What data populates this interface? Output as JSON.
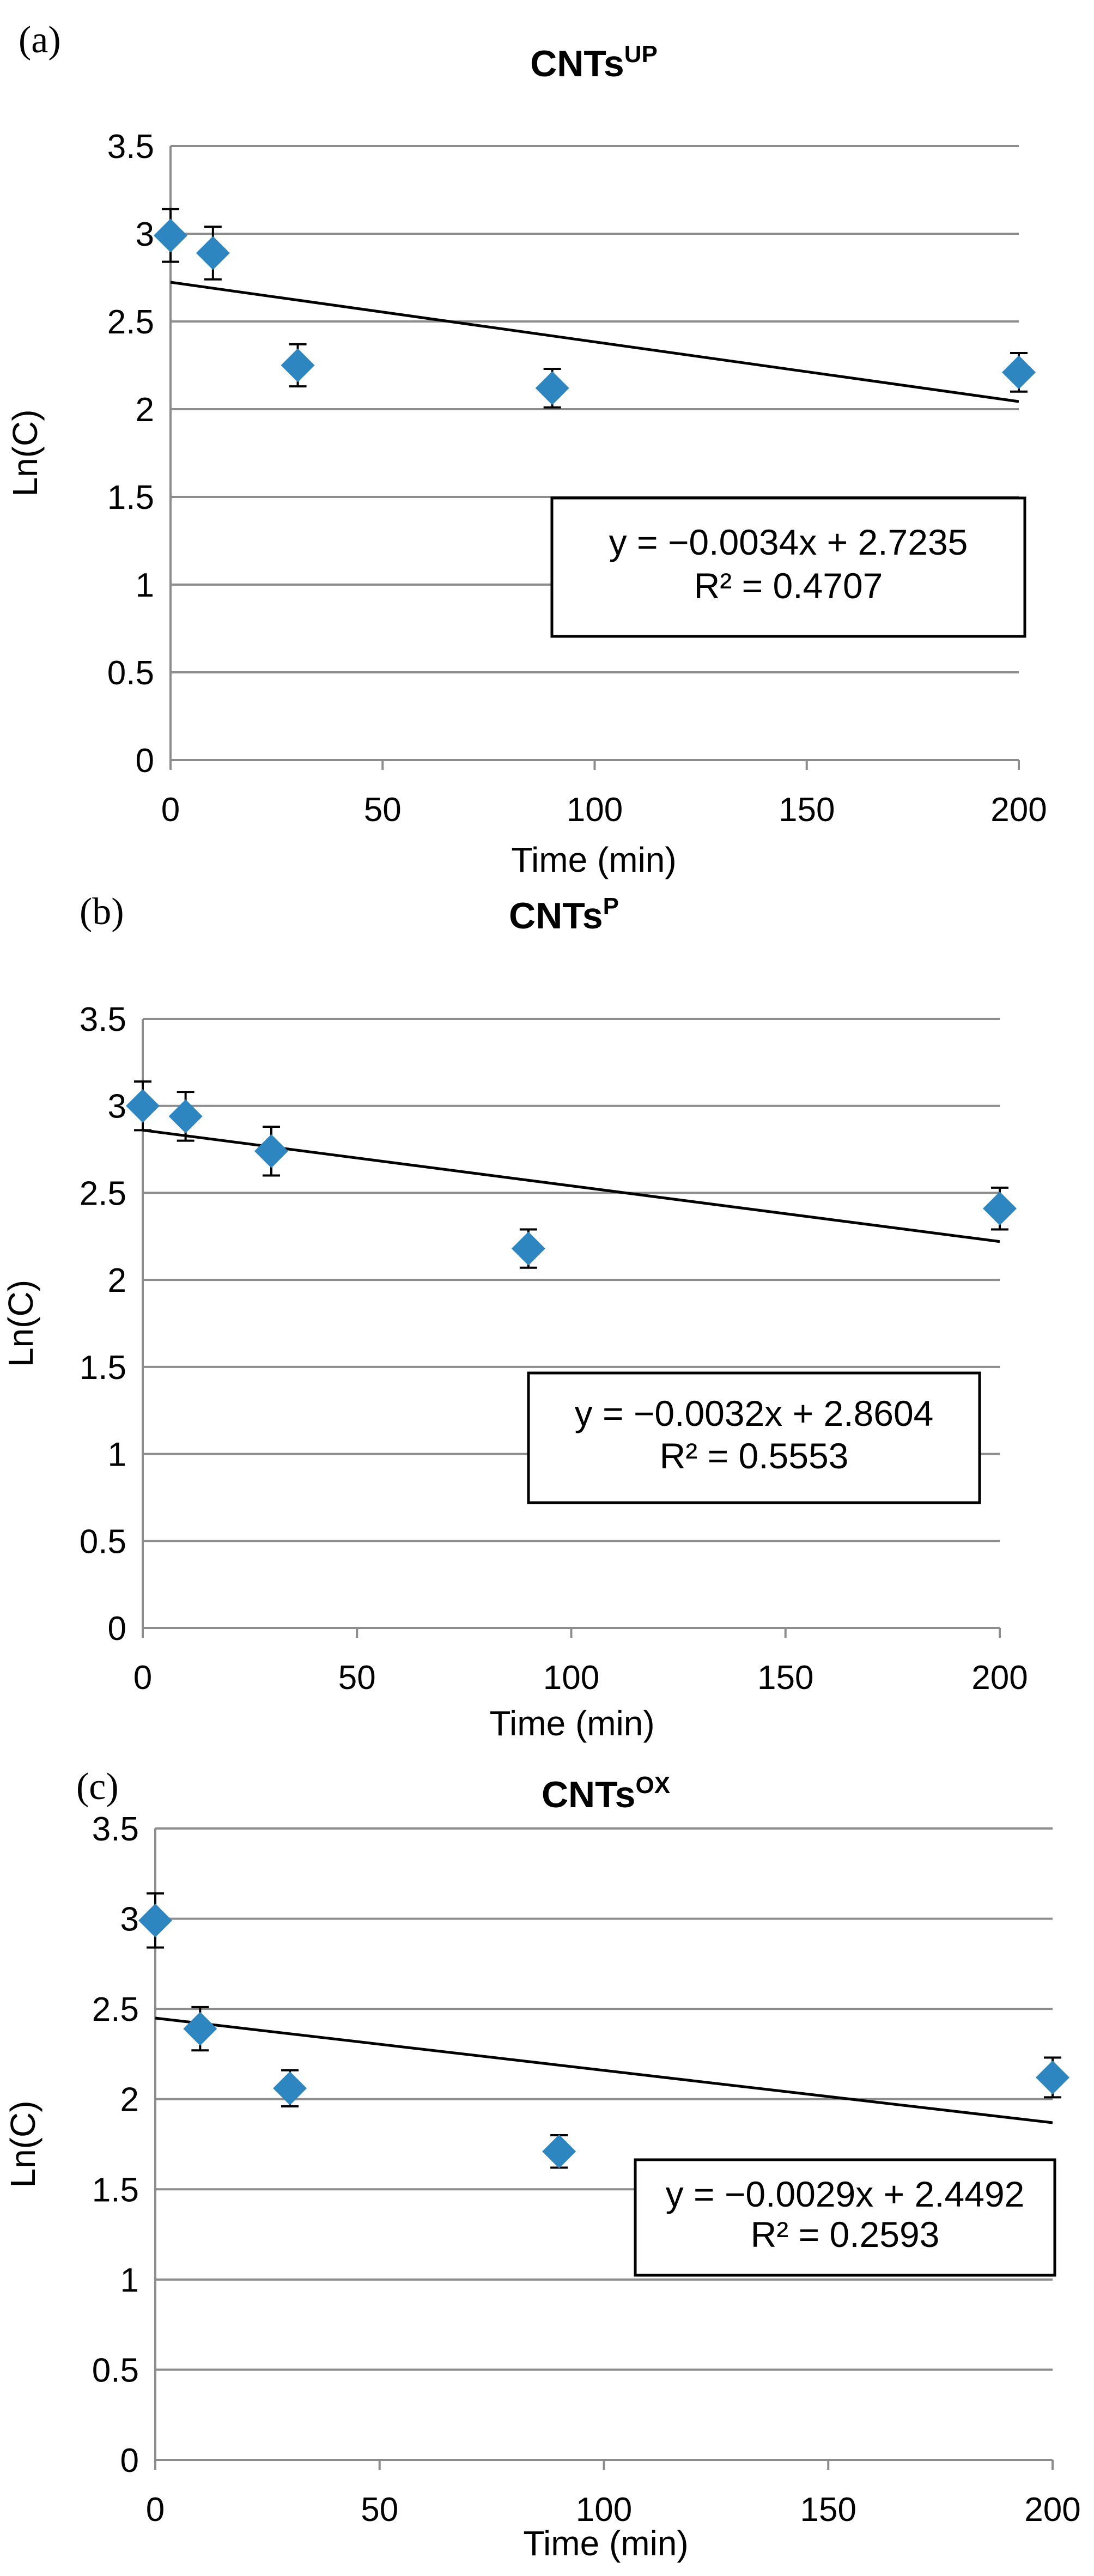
{
  "chart_data": [
    {
      "type": "scatter",
      "panel_label": "(a)",
      "title": "CNTs",
      "title_superscript": "UP",
      "xlabel": "Time (min)",
      "ylabel": "Ln(C)",
      "xlim": [
        0,
        200
      ],
      "ylim": [
        0,
        3.5
      ],
      "x_ticks": [
        "0",
        "50",
        "100",
        "150",
        "200"
      ],
      "y_ticks": [
        "0",
        "0.5",
        "1",
        "1.5",
        "2",
        "2.5",
        "3",
        "3.5"
      ],
      "grid": "horizontal",
      "marker_color": "#2E86C1",
      "line_color": "#000000",
      "points": [
        {
          "x": 0,
          "y": 2.99,
          "err": 0.15
        },
        {
          "x": 10,
          "y": 2.89,
          "err": 0.15
        },
        {
          "x": 30,
          "y": 2.25,
          "err": 0.12
        },
        {
          "x": 90,
          "y": 2.12,
          "err": 0.11
        },
        {
          "x": 200,
          "y": 2.21,
          "err": 0.11
        }
      ],
      "fit": {
        "slope": -0.0034,
        "intercept": 2.7235,
        "x_range": [
          0,
          200
        ]
      },
      "equation": "y = −0.0034x + 2.7235",
      "r_squared": "R² = 0.4707",
      "legend_position": "center-right"
    },
    {
      "type": "scatter",
      "panel_label": "(b)",
      "title": "CNTs",
      "title_superscript": "P",
      "xlabel": "Time (min)",
      "ylabel": "Ln(C)",
      "xlim": [
        0,
        200
      ],
      "ylim": [
        0,
        3.5
      ],
      "x_ticks": [
        "0",
        "50",
        "100",
        "150",
        "200"
      ],
      "y_ticks": [
        "0",
        "0.5",
        "1",
        "1.5",
        "2",
        "2.5",
        "3",
        "3.5"
      ],
      "grid": "horizontal",
      "marker_color": "#2E86C1",
      "line_color": "#000000",
      "points": [
        {
          "x": 0,
          "y": 3.0,
          "err": 0.14
        },
        {
          "x": 10,
          "y": 2.94,
          "err": 0.14
        },
        {
          "x": 30,
          "y": 2.74,
          "err": 0.14
        },
        {
          "x": 90,
          "y": 2.18,
          "err": 0.11
        },
        {
          "x": 200,
          "y": 2.41,
          "err": 0.12
        }
      ],
      "fit": {
        "slope": -0.0032,
        "intercept": 2.8604,
        "x_range": [
          0,
          200
        ]
      },
      "equation": "y = −0.0032x + 2.8604",
      "r_squared": "R² = 0.5553",
      "legend_position": "center-right"
    },
    {
      "type": "scatter",
      "panel_label": "(c)",
      "title": "CNTs",
      "title_superscript": "OX",
      "xlabel": "Time (min)",
      "ylabel": "Ln(C)",
      "xlim": [
        0,
        200
      ],
      "ylim": [
        0,
        3.5
      ],
      "x_ticks": [
        "0",
        "50",
        "100",
        "150",
        "200"
      ],
      "y_ticks": [
        "0",
        "0.5",
        "1",
        "1.5",
        "2",
        "2.5",
        "3",
        "3.5"
      ],
      "grid": "horizontal",
      "marker_color": "#2E86C1",
      "line_color": "#000000",
      "points": [
        {
          "x": 0,
          "y": 2.99,
          "err": 0.15
        },
        {
          "x": 10,
          "y": 2.39,
          "err": 0.12
        },
        {
          "x": 30,
          "y": 2.06,
          "err": 0.1
        },
        {
          "x": 90,
          "y": 1.71,
          "err": 0.09
        },
        {
          "x": 200,
          "y": 2.12,
          "err": 0.11
        }
      ],
      "fit": {
        "slope": -0.0029,
        "intercept": 2.4492,
        "x_range": [
          0,
          200
        ]
      },
      "equation": "y = −0.0029x + 2.4492",
      "r_squared": "R² = 0.2593",
      "legend_position": "bottom-right"
    }
  ]
}
